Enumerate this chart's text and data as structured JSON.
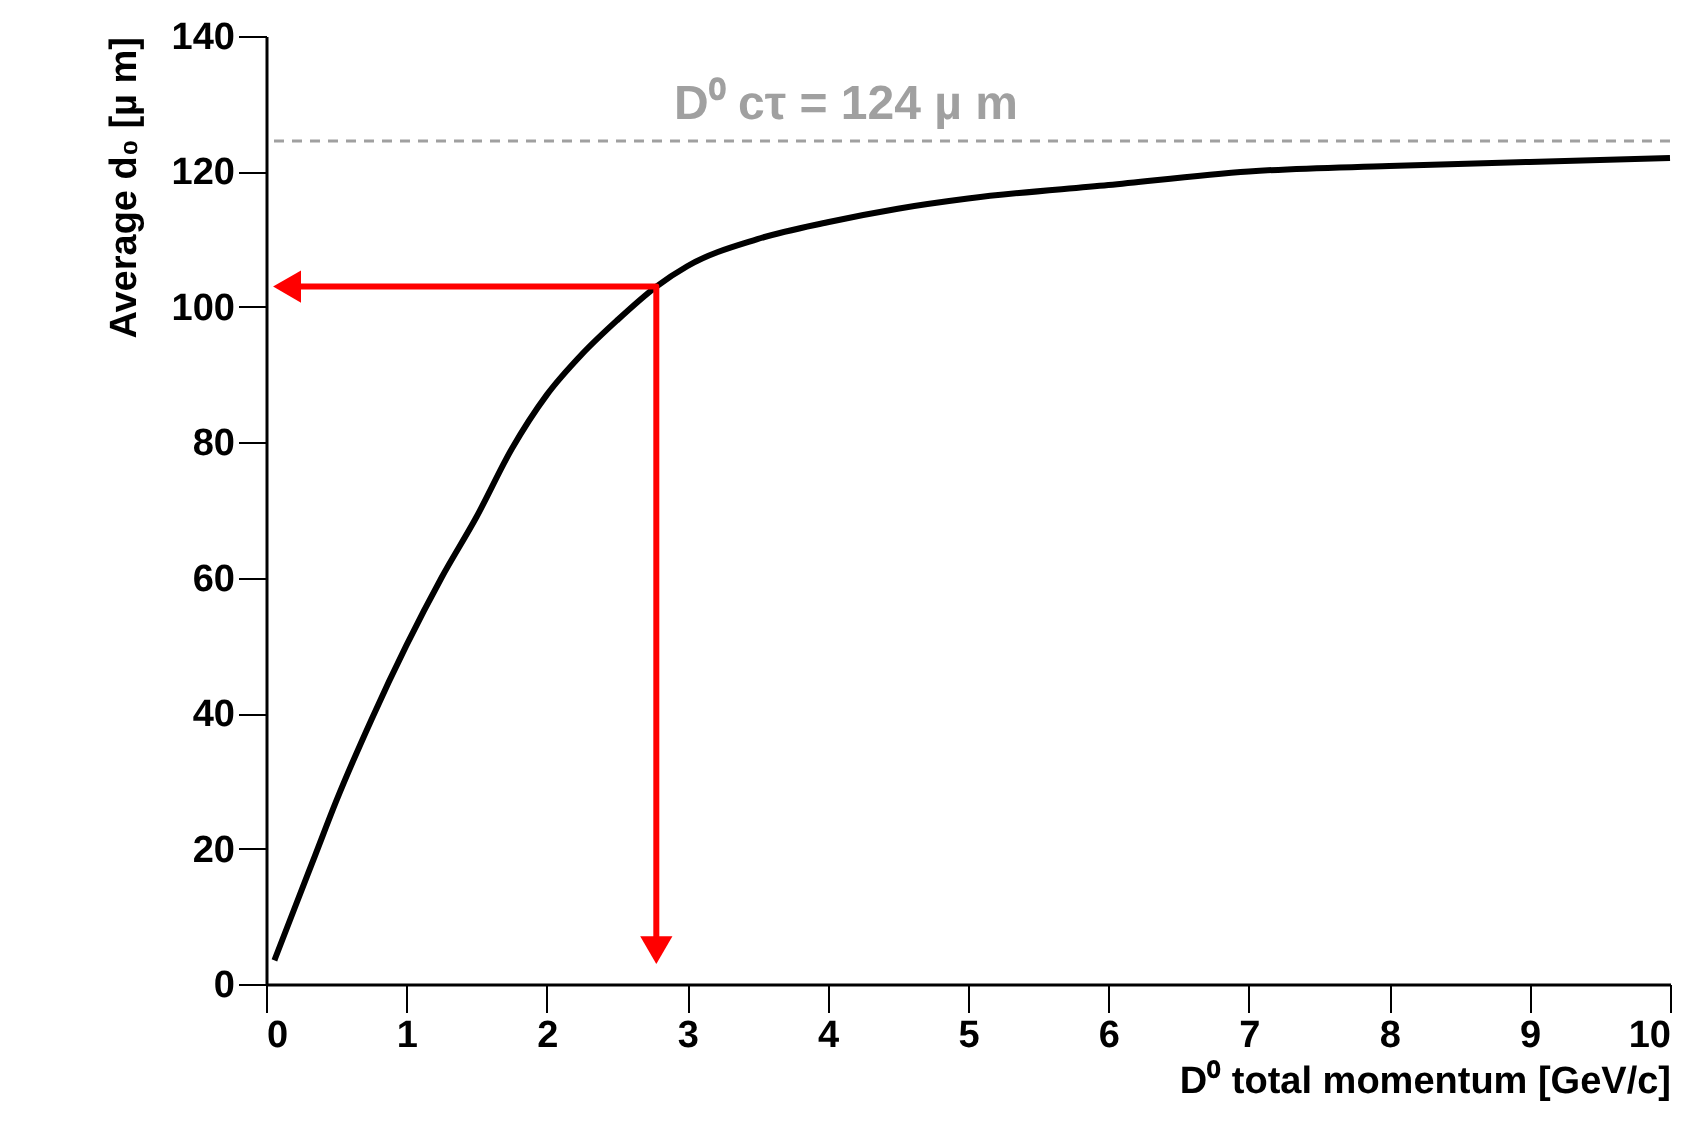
{
  "chart_data": {
    "type": "line",
    "xlabel": "D⁰ total momentum [GeV/c]",
    "ylabel": "Average d₀ [µ m]",
    "xlim": [
      0,
      10
    ],
    "xticks": [
      0,
      1,
      2,
      3,
      4,
      5,
      6,
      7,
      8,
      9,
      10
    ],
    "ylim": [
      0,
      140
    ],
    "yticks": [
      0,
      20,
      40,
      60,
      80,
      100,
      120,
      140
    ],
    "ref_lines": [
      {
        "axis": "y",
        "value": 124.5,
        "label": "D⁰ cτ = 124 µ m",
        "color": "#a0a0a0",
        "line_style": "dashed"
      }
    ],
    "series": [
      {
        "color": "#000000",
        "line_style": "solid",
        "x": [
          0.06,
          0.2,
          0.35,
          0.5,
          0.75,
          1,
          1.25,
          1.5,
          1.75,
          2,
          2.25,
          2.5,
          2.78,
          3,
          3.5,
          4,
          4.5,
          5,
          6,
          7,
          8,
          9,
          10
        ],
        "values": [
          3.5,
          11,
          19,
          27,
          39,
          50,
          60,
          69,
          79,
          87,
          93,
          98,
          103,
          106,
          110,
          112.5,
          114.5,
          116,
          118,
          120,
          120.8,
          121.4,
          122
        ]
      },
      {
        "color": "#ff0000",
        "line_style": "solid",
        "marker": "triangle",
        "x": [
          0.15,
          2.78,
          2.78
        ],
        "values": [
          103,
          103,
          5
        ]
      }
    ]
  }
}
